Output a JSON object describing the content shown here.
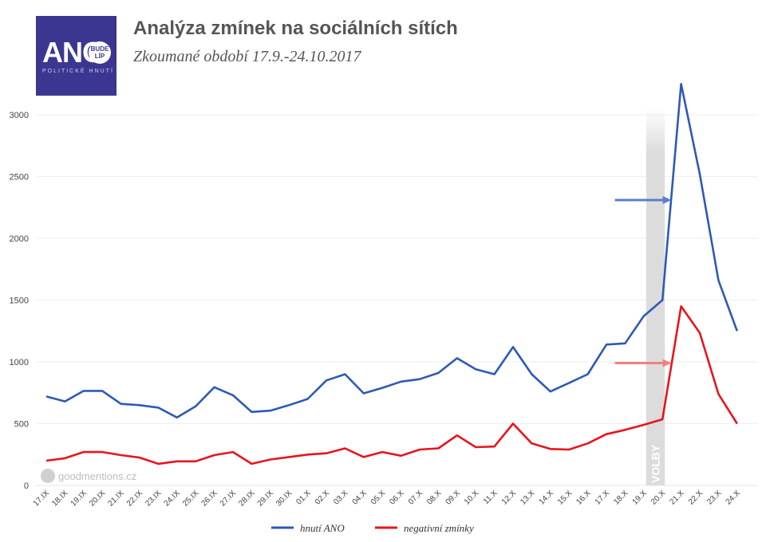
{
  "header": {
    "title": "Analýza zmínek na sociálních sítích",
    "subtitle": "Zkoumané období 17.9.-24.10.2017"
  },
  "logo": {
    "big_text": "ANO",
    "badge_line1": "BUDE",
    "badge_line2": "LÍP",
    "small_text": "POLITICKÉ HNUTÍ"
  },
  "watermark": "goodmentions.cz",
  "colors": {
    "ano": "#2f59b5",
    "negative": "#e8141d",
    "arrow_ano": "#5b7fc9",
    "arrow_negative": "#f08080",
    "election_band": "#dcdcdc",
    "grid": "#eeeeee"
  },
  "chart_data": {
    "type": "line",
    "categories": [
      "17.IX",
      "18.IX",
      "19.IX",
      "20.IX",
      "21.IX",
      "22.IX",
      "23.IX",
      "24.IX",
      "25.IX",
      "26.IX",
      "27.IX",
      "28.IX",
      "29.IX",
      "30.IX",
      "01.X",
      "02.X",
      "03.X",
      "04.X",
      "05.X",
      "06.X",
      "07.X",
      "08.X",
      "09.X",
      "10.X",
      "11.X",
      "12.X",
      "13.X",
      "14.X",
      "15.X",
      "16.X",
      "17.X",
      "18.X",
      "19.X",
      "20.X",
      "21.X",
      "22.X",
      "23.X",
      "24.X"
    ],
    "series": [
      {
        "name": "hnutí ANO",
        "color": "#2f59b5",
        "values": [
          720,
          680,
          765,
          765,
          660,
          650,
          630,
          550,
          640,
          795,
          730,
          595,
          605,
          650,
          700,
          850,
          900,
          745,
          790,
          840,
          860,
          910,
          1030,
          940,
          900,
          1120,
          900,
          760,
          830,
          900,
          1140,
          1150,
          1370,
          1500,
          3250,
          2520,
          1660,
          1250
        ]
      },
      {
        "name": "negativní zmínky",
        "color": "#e8141d",
        "values": [
          200,
          220,
          270,
          270,
          245,
          225,
          175,
          195,
          195,
          245,
          270,
          175,
          210,
          230,
          250,
          260,
          300,
          230,
          270,
          240,
          290,
          300,
          405,
          310,
          315,
          500,
          340,
          295,
          290,
          340,
          415,
          450,
          490,
          535,
          1450,
          1235,
          740,
          500
        ]
      }
    ],
    "ylim": [
      0,
      3300
    ],
    "yticks": [
      0,
      500,
      1000,
      1500,
      2000,
      2500,
      3000
    ],
    "grid": true,
    "legend": "bottom",
    "annotations": {
      "election_band": {
        "from": "19.X",
        "to": "20.X",
        "label": "VOLBY"
      },
      "arrows": [
        {
          "series": "hnutí ANO",
          "target": "21.X"
        },
        {
          "series": "negativní zmínky",
          "target": "21.X"
        }
      ]
    }
  }
}
